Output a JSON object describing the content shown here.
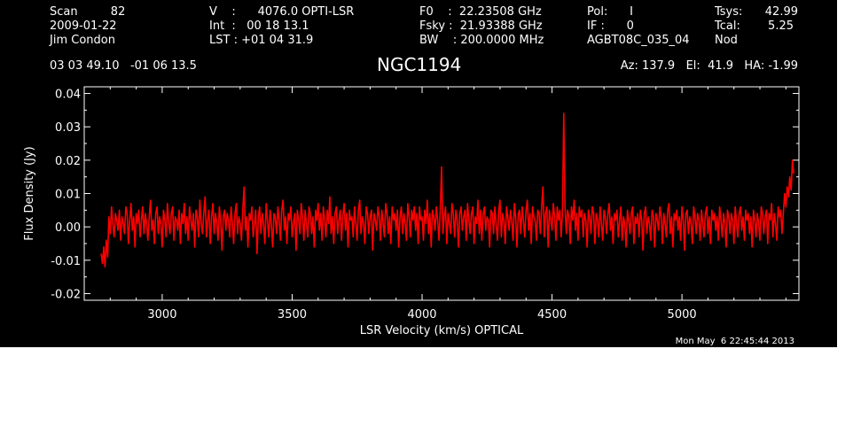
{
  "header": {
    "col1": [
      "Scan         82",
      "2009-01-22",
      "Jim Condon"
    ],
    "col2": [
      "V    :      4076.0 OPTI-LSR",
      "Int  :   00 18 13.1",
      "LST : +01 04 31.9"
    ],
    "col3": [
      "F0    :  22.23508 GHz",
      "Fsky :  21.93388 GHz",
      "BW    : 200.0000 MHz"
    ],
    "col4": [
      "Pol:      I",
      "IF :      0",
      "AGBT08C_035_04"
    ],
    "col5_labels": [
      "Tsys:",
      "Tcal:",
      "Nod"
    ],
    "col5_values": [
      "42.99",
      "5.25",
      ""
    ],
    "coords": "03 03 49.10   -01 06 13.5",
    "source": "NGC1194",
    "pointing": "Az: 137.9   El:  41.9   HA: -1.99",
    "timestamp": "Mon May  6 22:45:44 2013"
  },
  "colors": {
    "background": "#000000",
    "axes": "#ffffff",
    "series": "#ff0000",
    "page": "#ffffff"
  },
  "chart_data": {
    "type": "line",
    "title": "NGC1194",
    "xlabel": "LSR Velocity (km/s) OPTICAL",
    "ylabel": "Flux Density (Jy)",
    "xlim": [
      2700,
      5450
    ],
    "ylim": [
      -0.022,
      0.042
    ],
    "x_ticks": [
      3000,
      3500,
      4000,
      4500,
      5000
    ],
    "x_tick_labels": [
      "3000",
      "3500",
      "4000",
      "4500",
      "5000"
    ],
    "y_ticks": [
      -0.02,
      -0.01,
      0.0,
      0.01,
      0.02,
      0.03,
      0.04
    ],
    "y_tick_labels": [
      "-0.02",
      "-0.01",
      "0.00",
      "0.01",
      "0.02",
      "0.03",
      "0.04"
    ],
    "grid": false,
    "series": [
      {
        "color": "#ff0000",
        "x_start": 2765,
        "x_step": 5,
        "y": [
          -0.008,
          -0.011,
          -0.006,
          -0.012,
          -0.004,
          -0.009,
          0.003,
          -0.002,
          0.006,
          0.001,
          -0.003,
          0.004,
          0.002,
          -0.001,
          0.005,
          -0.004,
          0.003,
          0.001,
          -0.002,
          0.006,
          0.004,
          -0.005,
          0.002,
          0.007,
          -0.001,
          0.003,
          -0.006,
          0.004,
          0.001,
          0.005,
          -0.003,
          0.002,
          0.006,
          -0.002,
          0.004,
          0.001,
          -0.004,
          0.003,
          0.008,
          -0.001,
          0.002,
          -0.005,
          0.004,
          0.006,
          -0.002,
          0.003,
          0.001,
          -0.006,
          0.005,
          0.002,
          -0.003,
          0.007,
          0.001,
          -0.002,
          0.004,
          0.006,
          -0.004,
          0.003,
          0.002,
          -0.001,
          0.005,
          -0.005,
          0.004,
          0.001,
          0.007,
          -0.002,
          0.003,
          -0.004,
          0.006,
          0.002,
          -0.001,
          0.004,
          -0.006,
          0.005,
          0.003,
          -0.003,
          0.008,
          0.001,
          -0.002,
          0.004,
          0.009,
          -0.003,
          0.002,
          0.005,
          -0.005,
          0.003,
          0.007,
          -0.002,
          0.004,
          0.001,
          -0.004,
          0.006,
          0.002,
          -0.007,
          0.003,
          0.005,
          -0.001,
          0.004,
          0.002,
          -0.003,
          0.006,
          0.001,
          -0.005,
          0.004,
          0.007,
          -0.002,
          0.003,
          0.001,
          -0.004,
          0.005,
          0.012,
          -0.001,
          0.003,
          -0.006,
          0.004,
          0.002,
          0.006,
          -0.003,
          0.001,
          0.005,
          -0.008,
          0.003,
          0.006,
          -0.002,
          0.004,
          0.001,
          -0.005,
          0.007,
          0.002,
          -0.003,
          0.005,
          0.001,
          -0.006,
          0.004,
          0.003,
          -0.002,
          0.006,
          0.002,
          -0.004,
          0.005,
          0.008,
          -0.001,
          0.003,
          -0.005,
          0.004,
          0.002,
          0.006,
          -0.003,
          0.001,
          0.004,
          -0.007,
          0.005,
          0.002,
          -0.002,
          0.007,
          0.003,
          -0.004,
          0.005,
          0.001,
          -0.003,
          0.006,
          0.004,
          -0.002,
          0.003,
          -0.006,
          0.005,
          0.002,
          0.007,
          -0.001,
          0.004,
          -0.004,
          0.006,
          0.002,
          -0.003,
          0.005,
          0.001,
          0.009,
          -0.002,
          0.003,
          -0.005,
          0.004,
          0.006,
          -0.002,
          0.002,
          0.005,
          -0.004,
          0.003,
          0.007,
          -0.001,
          0.004,
          -0.006,
          0.005,
          0.002,
          0.003,
          -0.003,
          0.006,
          0.001,
          -0.004,
          0.005,
          0.008,
          -0.002,
          0.003,
          0.001,
          -0.005,
          0.006,
          0.004,
          -0.002,
          0.003,
          0.005,
          -0.007,
          0.004,
          0.002,
          -0.001,
          0.006,
          0.003,
          -0.004,
          0.005,
          0.001,
          -0.003,
          0.007,
          0.004,
          -0.002,
          0.003,
          -0.005,
          0.006,
          0.002,
          0.004,
          -0.001,
          0.005,
          -0.006,
          0.003,
          0.006,
          -0.002,
          0.004,
          0.001,
          -0.004,
          0.007,
          0.003,
          -0.003,
          0.005,
          0.002,
          0.006,
          -0.001,
          0.004,
          -0.005,
          0.006,
          0.002,
          0.003,
          -0.004,
          0.005,
          0.001,
          0.008,
          -0.002,
          0.004,
          -0.006,
          0.005,
          0.003,
          -0.001,
          0.006,
          0.002,
          -0.004,
          0.005,
          0.018,
          -0.002,
          0.003,
          0.006,
          -0.005,
          0.004,
          0.001,
          -0.002,
          0.007,
          0.004,
          -0.003,
          0.005,
          0.002,
          -0.006,
          0.004,
          0.006,
          -0.001,
          0.003,
          0.005,
          -0.004,
          0.007,
          0.002,
          -0.002,
          0.004,
          0.006,
          -0.005,
          0.003,
          0.001,
          0.008,
          -0.002,
          0.005,
          -0.004,
          0.004,
          0.006,
          -0.001,
          0.003,
          0.002,
          -0.006,
          0.005,
          0.004,
          -0.002,
          0.006,
          0.001,
          -0.004,
          0.005,
          0.008,
          -0.003,
          0.004,
          0.002,
          -0.005,
          0.006,
          0.003,
          -0.001,
          0.005,
          0.002,
          -0.004,
          0.007,
          0.003,
          -0.006,
          0.004,
          0.005,
          -0.002,
          0.006,
          0.002,
          -0.003,
          0.005,
          0.008,
          -0.001,
          0.004,
          -0.005,
          0.006,
          0.003,
          0.002,
          -0.004,
          0.005,
          0.004,
          -0.002,
          0.006,
          0.012,
          -0.003,
          0.004,
          0.006,
          -0.006,
          0.005,
          0.002,
          -0.001,
          0.007,
          0.003,
          -0.004,
          0.006,
          0.002,
          0.005,
          -0.003,
          0.004,
          0.034,
          0.006,
          -0.002,
          0.005,
          0.003,
          -0.005,
          0.006,
          0.002,
          0.008,
          -0.001,
          0.004,
          -0.004,
          0.006,
          0.003,
          0.005,
          -0.003,
          0.004,
          0.002,
          -0.006,
          0.005,
          0.003,
          -0.002,
          0.006,
          0.004,
          -0.005,
          0.004,
          0.002,
          -0.003,
          0.006,
          0.001,
          -0.004,
          0.005,
          0.003,
          -0.002,
          0.004,
          0.007,
          -0.001,
          0.003,
          -0.005,
          0.004,
          0.002,
          0.005,
          -0.003,
          0.002,
          0.006,
          -0.004,
          0.003,
          0.001,
          -0.006,
          0.005,
          0.002,
          -0.002,
          0.004,
          0.006,
          -0.005,
          0.003,
          0.001,
          0.004,
          -0.003,
          0.005,
          0.002,
          -0.007,
          0.004,
          0.006,
          -0.002,
          0.003,
          0.001,
          -0.004,
          0.005,
          0.003,
          -0.006,
          0.004,
          0.002,
          -0.001,
          0.006,
          0.003,
          -0.005,
          0.004,
          0.001,
          -0.003,
          0.005,
          0.007,
          -0.002,
          0.003,
          -0.006,
          0.004,
          0.002,
          0.005,
          -0.001,
          0.003,
          -0.004,
          0.006,
          0.002,
          -0.007,
          0.004,
          0.005,
          -0.002,
          0.003,
          0.001,
          -0.005,
          0.006,
          0.003,
          -0.002,
          0.004,
          0.002,
          -0.004,
          0.005,
          0.001,
          -0.003,
          0.004,
          0.006,
          -0.002,
          0.003,
          -0.005,
          0.005,
          0.002,
          0.004,
          -0.001,
          0.003,
          -0.004,
          0.006,
          0.002,
          -0.003,
          0.004,
          0.001,
          -0.006,
          0.005,
          0.003,
          -0.002,
          0.004,
          0.002,
          -0.005,
          0.006,
          0.001,
          -0.003,
          0.004,
          0.006,
          -0.001,
          0.003,
          -0.004,
          0.005,
          0.002,
          0.004,
          -0.002,
          0.003,
          -0.006,
          0.005,
          0.002,
          -0.003,
          0.004,
          0.001,
          -0.004,
          0.006,
          0.004,
          -0.002,
          0.003,
          0.005,
          -0.005,
          0.004,
          0.002,
          0.007,
          -0.003,
          0.004,
          0.001,
          -0.004,
          0.006,
          0.003,
          0.005,
          -0.002,
          0.004,
          0.01,
          0.006,
          0.012,
          0.009,
          0.015,
          0.011,
          0.02,
          0.016
        ]
      }
    ]
  }
}
